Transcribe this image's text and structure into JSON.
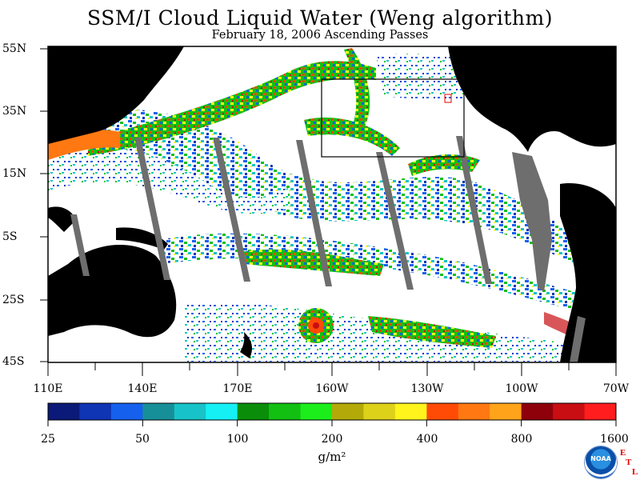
{
  "title": "SSM/I Cloud Liquid Water (Weng algorithm)",
  "subtitle": "February 18, 2006  Ascending Passes",
  "lat_labels": [
    "55N",
    "35N",
    "15N",
    "5S",
    "25S",
    "45S"
  ],
  "lon_labels": [
    "110E",
    "140E",
    "170E",
    "160W",
    "130W",
    "100W",
    "70W"
  ],
  "colorbar": {
    "colors": [
      "#0b1a78",
      "#0f35b5",
      "#1660ee",
      "#178f99",
      "#17c3c8",
      "#14f0f4",
      "#0a8e0a",
      "#12c012",
      "#1cee1c",
      "#b3aa0a",
      "#ded11a",
      "#fff41c",
      "#ff4b05",
      "#ff7812",
      "#ffa41a",
      "#8e000a",
      "#c80e12",
      "#ff1d1d"
    ],
    "tick_labels": [
      "25",
      "50",
      "100",
      "200",
      "400",
      "800",
      "1600"
    ]
  },
  "units": "g/m²",
  "logo_text": "NOAA",
  "etl_letters": [
    "E",
    "T",
    "L"
  ]
}
